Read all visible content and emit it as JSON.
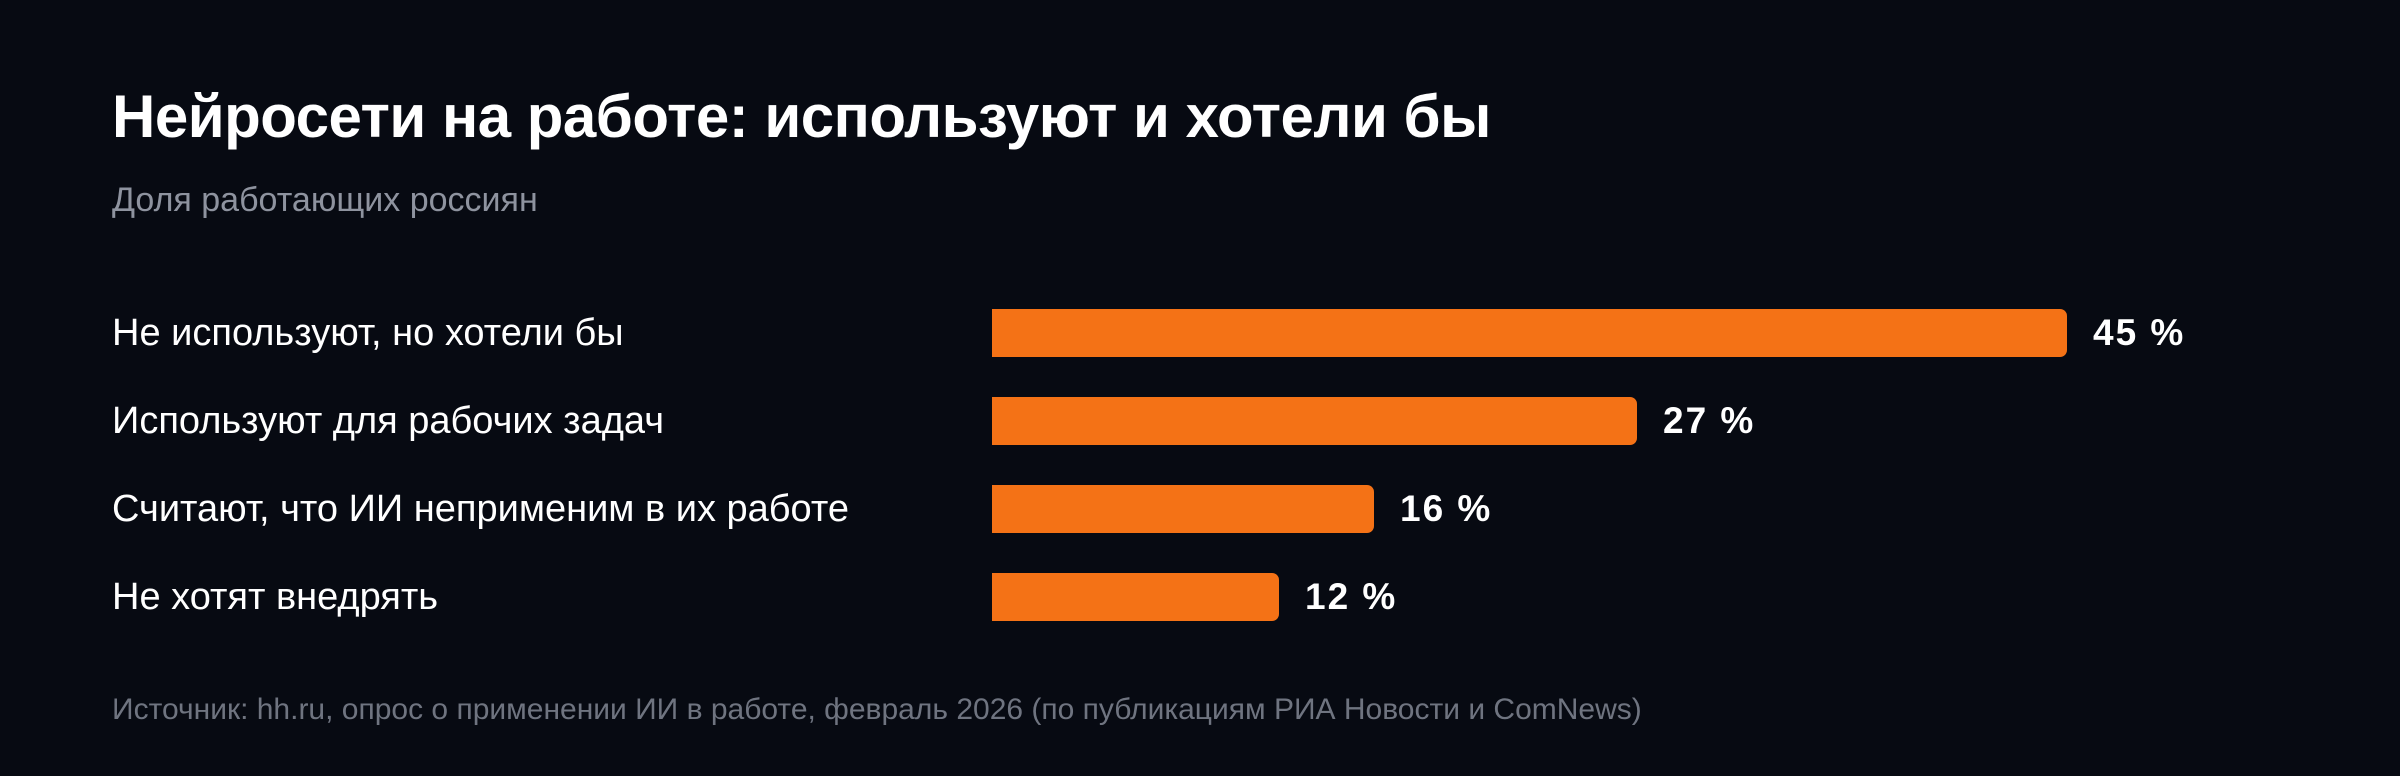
{
  "colors": {
    "background": "#070a12",
    "bar": "#f47216",
    "title": "#ffffff",
    "subtitle": "#8e939f",
    "source": "#6f7480"
  },
  "chart_data": {
    "type": "bar",
    "orientation": "horizontal",
    "title": "Нейросети на работе: используют и хотели бы",
    "subtitle": "Доля работающих россиян",
    "categories": [
      "Не используют, но хотели бы",
      "Используют для рабочих задач",
      "Считают, что ИИ неприменим в их работе",
      "Не хотят внедрять"
    ],
    "values": [
      45,
      27,
      16,
      12
    ],
    "value_labels": [
      "45 %",
      "27 %",
      "16 %",
      "12 %"
    ],
    "unit": "%",
    "grid": false,
    "legend": "none",
    "source": "Источник: hh.ru, опрос о применении ИИ в работе, февраль 2026 (по публикациям РИА Новости и ComNews)"
  }
}
